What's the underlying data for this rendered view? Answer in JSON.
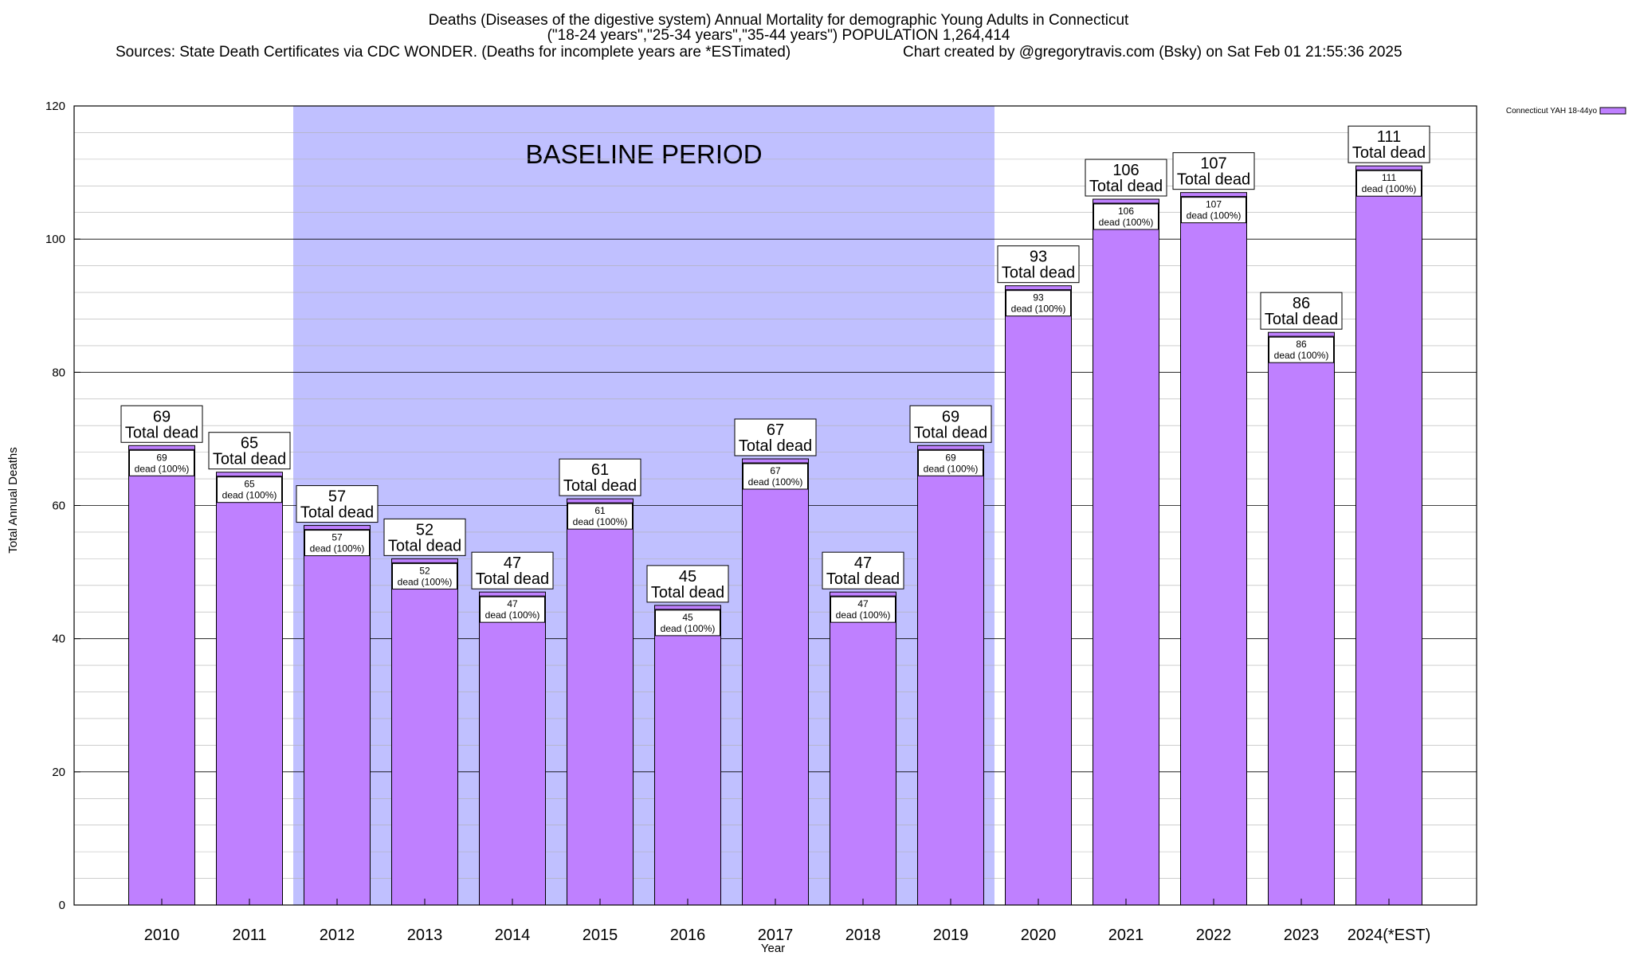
{
  "header": {
    "line1": "Deaths (Diseases of the digestive system) Annual Mortality for demographic Young Adults in Connecticut",
    "line2": "(\"18-24 years\",\"25-34 years\",\"35-44 years\") POPULATION 1,264,414",
    "line3_left": "Sources: State Death Certificates via CDC WONDER. (Deaths for incomplete years are *ESTimated)",
    "line3_right": "Chart created by @gregorytravis.com (Bsky) on Sat Feb 01 21:55:36 2025"
  },
  "colors": {
    "bar": "#bf80ff",
    "baseline_shade": "#c0c0ff",
    "grid": "#b0b0b0"
  },
  "chart_data": {
    "type": "bar",
    "categories": [
      "2010",
      "2011",
      "2012",
      "2013",
      "2014",
      "2015",
      "2016",
      "2017",
      "2018",
      "2019",
      "2020",
      "2021",
      "2022",
      "2023",
      "2024(*EST)"
    ],
    "series": [
      {
        "name": "Connecticut YAH 18-44yo",
        "values": [
          69,
          65,
          57,
          52,
          47,
          61,
          45,
          67,
          47,
          69,
          93,
          106,
          107,
          86,
          111
        ]
      }
    ],
    "ylim": [
      0,
      120
    ],
    "yticks": [
      0,
      20,
      40,
      60,
      80,
      100,
      120
    ],
    "xlabel": "Year",
    "ylabel": "Total Annual Deaths",
    "grid": true,
    "legend": "top-right",
    "label_top_suffix": "Total dead",
    "label_inner_suffix": "dead (100%)",
    "annotation": {
      "text": "BASELINE PERIOD",
      "from_category": "2012",
      "to_category": "2019"
    }
  }
}
